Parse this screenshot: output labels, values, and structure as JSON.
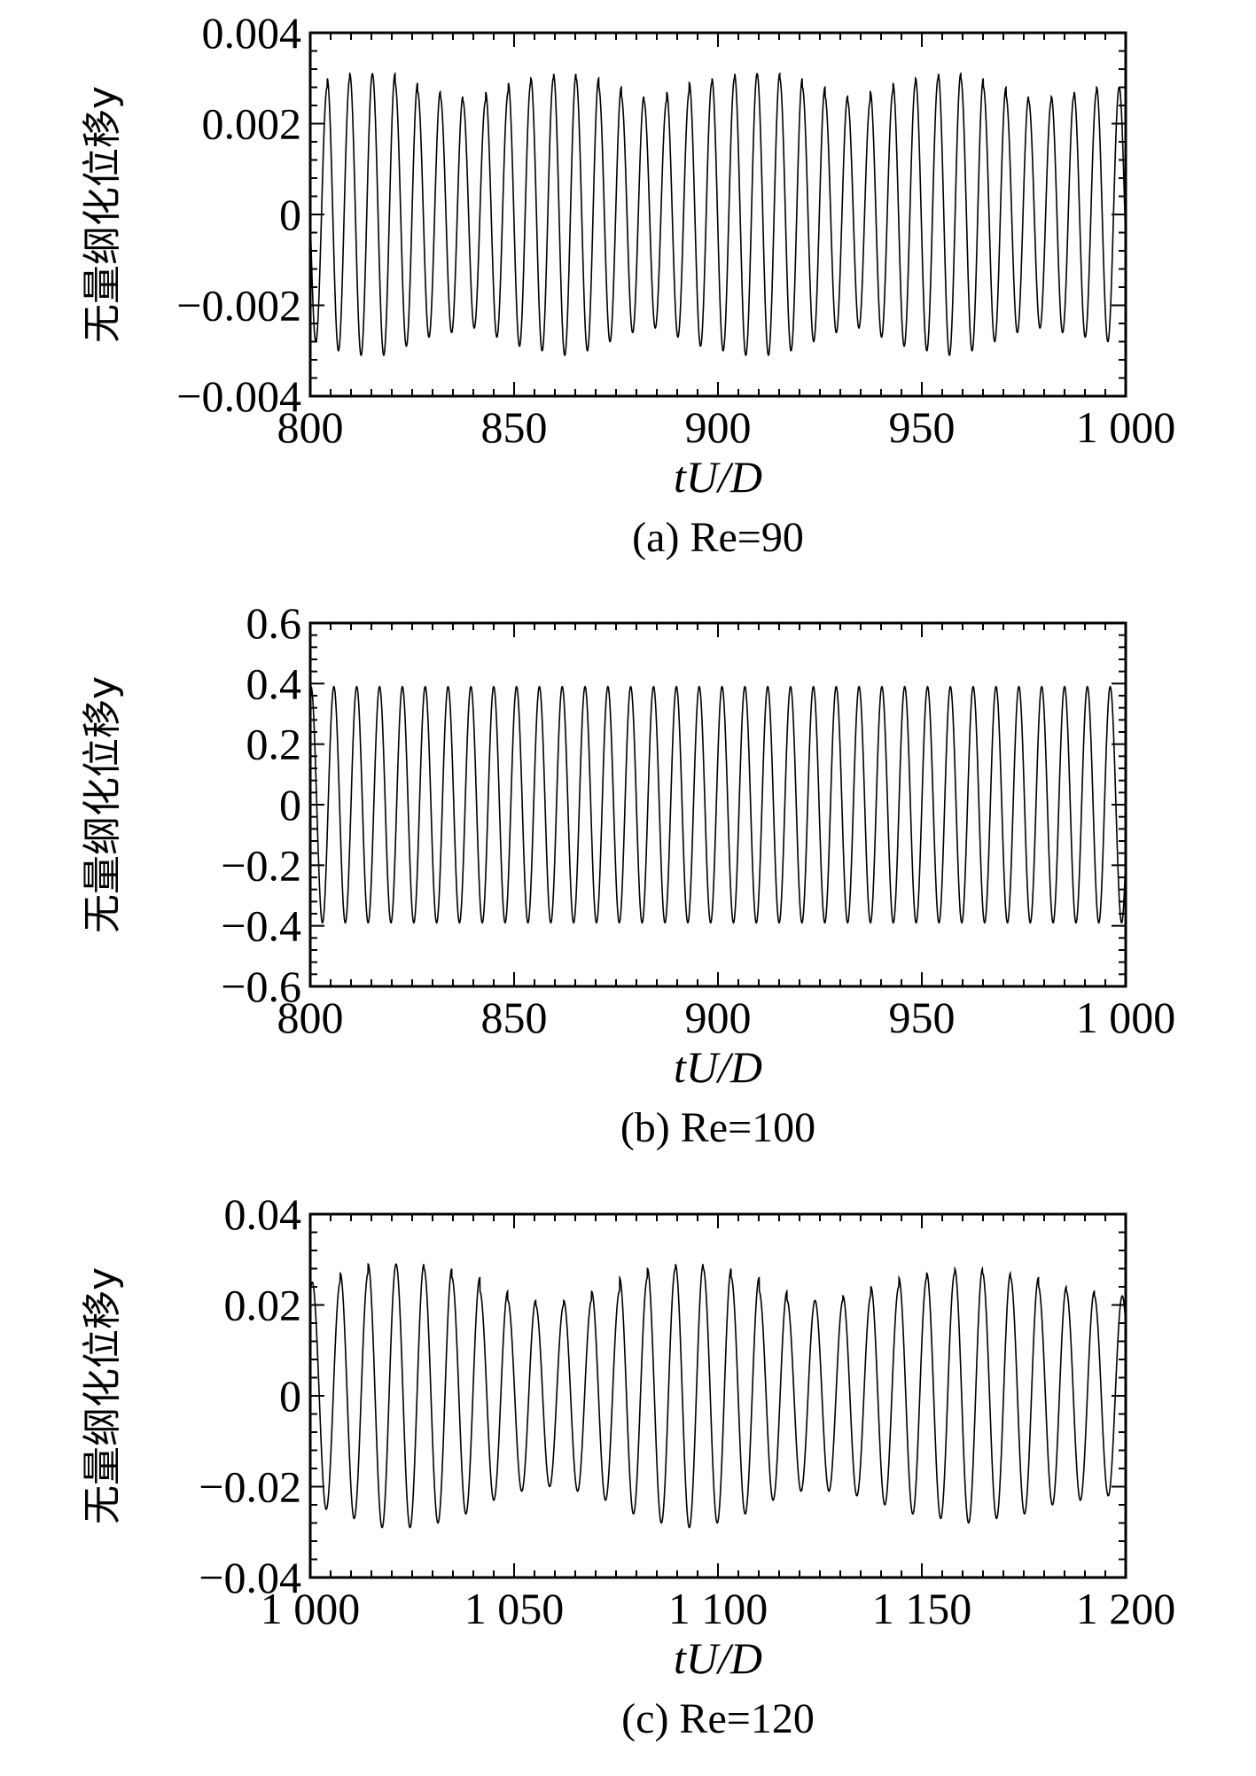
{
  "chart_data": [
    {
      "type": "line",
      "panel": "a",
      "caption": "(a) Re=90",
      "xlabel": "tU/D",
      "ylabel": "无量纲化位移y",
      "xlim": [
        800,
        1000
      ],
      "ylim": [
        -0.004,
        0.004
      ],
      "xticks": [
        800,
        850,
        900,
        950,
        1000
      ],
      "xtick_labels": [
        "800",
        "850",
        "900",
        "950",
        "1 000"
      ],
      "yticks": [
        0.004,
        0.002,
        0,
        -0.002,
        -0.004
      ],
      "ytick_labels": [
        "0.004",
        "0.002",
        "0",
        "−0.002",
        "−0.004"
      ],
      "grid": false,
      "series": [
        {
          "period": 5.55,
          "phase_start": 798.6,
          "peak_amplitudes": [
            0.0028,
            0.003,
            0.0031,
            0.0031,
            0.0029,
            0.0027,
            0.0026,
            0.0025,
            0.0027,
            0.0029,
            0.003,
            0.0031,
            0.003,
            0.0028,
            0.0026,
            0.0025,
            0.0027,
            0.0029,
            0.003,
            0.0031,
            0.0031,
            0.003,
            0.0028,
            0.0026,
            0.0025,
            0.0027,
            0.0029,
            0.003,
            0.0031,
            0.003,
            0.0028,
            0.0026,
            0.0025,
            0.0026,
            0.0027,
            0.0028
          ],
          "stroke": "#000000"
        }
      ]
    },
    {
      "type": "line",
      "panel": "b",
      "caption": "(b) Re=100",
      "xlabel": "tU/D",
      "ylabel": "无量纲化位移y",
      "xlim": [
        800,
        1000
      ],
      "ylim": [
        -0.6,
        0.6
      ],
      "xticks": [
        800,
        850,
        900,
        950,
        1000
      ],
      "xtick_labels": [
        "800",
        "850",
        "900",
        "950",
        "1 000"
      ],
      "yticks": [
        0.6,
        0.4,
        0.2,
        0,
        -0.2,
        -0.4,
        -0.6
      ],
      "ytick_labels": [
        "0.6",
        "0.4",
        "0.2",
        "0",
        "−0.2",
        "−0.4",
        "−0.6"
      ],
      "grid": false,
      "series": [
        {
          "period": 5.6,
          "phase_start": 800.2,
          "peak_amplitudes": [
            0.39
          ],
          "stroke": "#000000"
        }
      ]
    },
    {
      "type": "line",
      "panel": "c",
      "caption": "(c) Re=120",
      "xlabel": "tU/D",
      "ylabel": "无量纲化位移y",
      "xlim": [
        1000,
        1200
      ],
      "ylim": [
        -0.04,
        0.04
      ],
      "xticks": [
        1000,
        1050,
        1100,
        1150,
        1200
      ],
      "xtick_labels": [
        "1 000",
        "1 050",
        "1 100",
        "1 150",
        "1 200"
      ],
      "yticks": [
        0.04,
        0.02,
        0,
        -0.02,
        -0.04
      ],
      "ytick_labels": [
        "0.04",
        "0.02",
        "0",
        "−0.02",
        "−0.04"
      ],
      "grid": false,
      "series": [
        {
          "period": 6.85,
          "phase_start": 1000.5,
          "peak_amplitudes": [
            0.025,
            0.027,
            0.029,
            0.029,
            0.028,
            0.026,
            0.023,
            0.021,
            0.02,
            0.021,
            0.023,
            0.026,
            0.028,
            0.029,
            0.028,
            0.026,
            0.023,
            0.021,
            0.021,
            0.022,
            0.024,
            0.026,
            0.027,
            0.028,
            0.027,
            0.026,
            0.024,
            0.023,
            0.022,
            0.022
          ],
          "stroke": "#000000"
        }
      ]
    }
  ]
}
